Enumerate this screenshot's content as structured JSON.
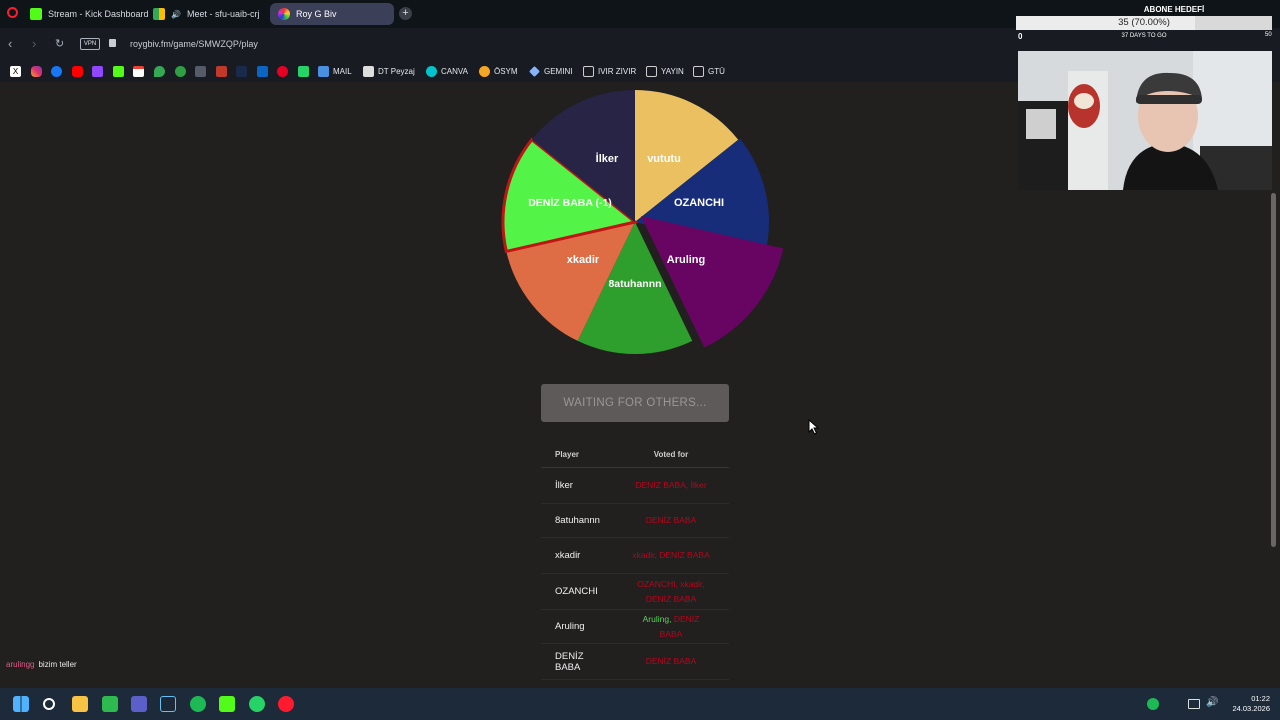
{
  "browser": {
    "tabs": [
      {
        "label": "Stream - Kick Dashboard"
      },
      {
        "label": "Meet - sfu-uaib-crj"
      },
      {
        "label": "Roy G Biv"
      }
    ],
    "vpn_label": "VPN",
    "url": "roygbiv.fm/game/SMWZQP/play",
    "bookmarks": [
      {
        "label": "MAIL"
      },
      {
        "label": "DT Peyzaj"
      },
      {
        "label": "CANVA"
      },
      {
        "label": "ÖSYM"
      },
      {
        "label": "GEMINI"
      },
      {
        "label": "IVIR ZIVIR"
      },
      {
        "label": "YAYIN"
      },
      {
        "label": "GTÜ"
      }
    ]
  },
  "game": {
    "pie_slices": [
      {
        "label": "vututu",
        "color": "#eac060",
        "weight": 1
      },
      {
        "label": "OZANCHI",
        "color": "#172d7a",
        "weight": 1
      },
      {
        "label": "Aruling",
        "color": "#680563",
        "weight": 1.15
      },
      {
        "label": "8atuhannn",
        "color": "#2e9e2c",
        "weight": 1
      },
      {
        "label": "xkadir",
        "color": "#de6c44",
        "weight": 1
      },
      {
        "label": "DENİZ BABA (-1)",
        "color": "#54f348",
        "weight": 1
      },
      {
        "label": "İlker",
        "color": "#272445",
        "weight": 1
      }
    ],
    "waiting_button": "WAITING FOR OTHERS...",
    "table": {
      "headers": {
        "player": "Player",
        "voted_for": "Voted for"
      },
      "rows": [
        {
          "player": "İlker",
          "votes": [
            {
              "text": "DENİZ BABA, İlker",
              "correct": false
            }
          ]
        },
        {
          "player": "8atuhannn",
          "votes": [
            {
              "text": "DENİZ BABA",
              "correct": false
            }
          ]
        },
        {
          "player": "xkadir",
          "votes": [
            {
              "text": "xkadir, DENİZ BABA",
              "correct": false
            }
          ]
        },
        {
          "player": "OZANCHI",
          "votes": [
            {
              "text": "OZANCHI, xkadir, DENİZ BABA",
              "correct": false
            }
          ]
        },
        {
          "player": "Aruling",
          "votes": [
            {
              "text": "Aruling,",
              "correct": true
            },
            {
              "text": " DENİZ BABA",
              "correct": false
            }
          ]
        },
        {
          "player": "DENİZ BABA",
          "votes": [
            {
              "text": "DENİZ BABA",
              "correct": false
            }
          ]
        }
      ]
    }
  },
  "chat": {
    "user": "arulingg",
    "message": "bizim teller"
  },
  "overlay": {
    "goal_title": "ABONE HEDEFİ",
    "goal_value": "35 (70.00%)",
    "goal_progress": 0.7,
    "goal_min": "0",
    "goal_max": "50",
    "goal_sub": "37 DAYS TO GO"
  },
  "taskbar": {
    "time": "01:22",
    "date": "24.03.2026"
  }
}
